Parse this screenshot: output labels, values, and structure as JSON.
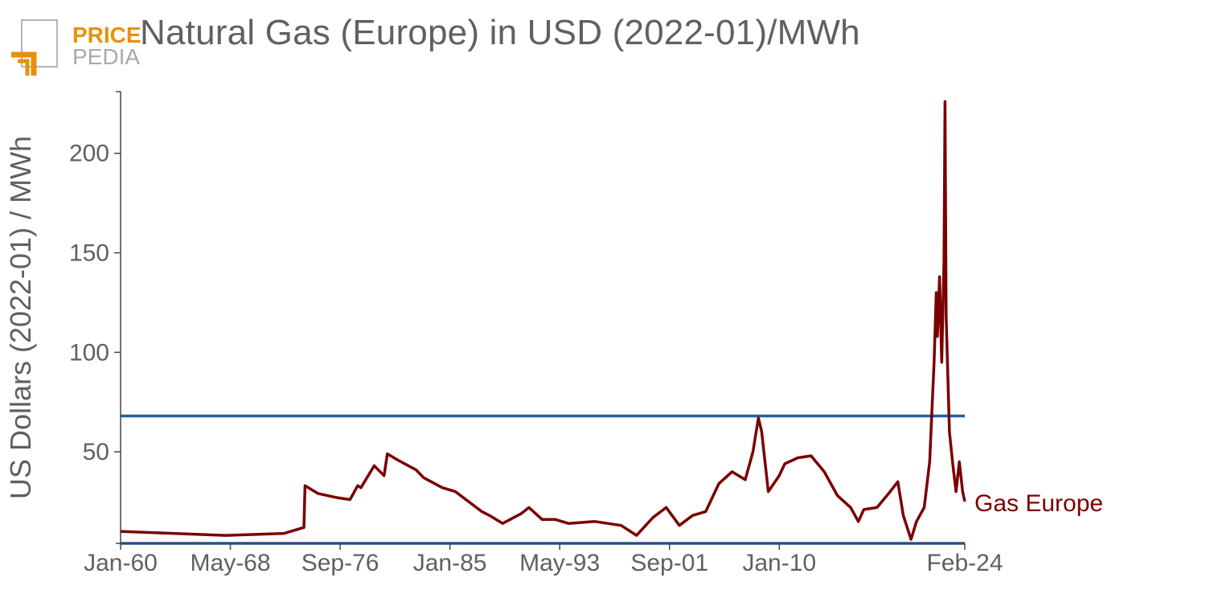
{
  "logo": {
    "line1": "PRICE",
    "line2": "PEDIA"
  },
  "chart_data": {
    "type": "line",
    "title": "Natural Gas (Europe) in USD (2022-01)/MWh",
    "xlabel": "",
    "ylabel": "US Dollars (2022-01) / MWh",
    "x_tick_labels": [
      "Jan-60",
      "May-68",
      "Sep-76",
      "Jan-85",
      "May-93",
      "Sep-01",
      "Jan-10",
      "Feb-24"
    ],
    "x_tick_dates": [
      "1960-01",
      "1968-05",
      "1976-09",
      "1985-01",
      "1993-05",
      "2001-09",
      "2010-01",
      "2024-02"
    ],
    "y_ticks": [
      50,
      100,
      150,
      200
    ],
    "xlim": [
      "1960-01",
      "2024-02"
    ],
    "ylim": [
      4,
      231
    ],
    "grid": false,
    "legend": "none",
    "series_color": "#7a0000",
    "reference_color": "#1f5fa6",
    "reference_lines": [
      68,
      4
    ],
    "series": [
      {
        "name": "Gas Europe",
        "x": [
          "1960-01",
          "1964-01",
          "1968-01",
          "1972-06",
          "1973-12",
          "1974-01",
          "1975-01",
          "1976-06",
          "1977-06",
          "1978-01",
          "1978-04",
          "1979-04",
          "1980-01",
          "1980-04",
          "1981-01",
          "1982-06",
          "1983-01",
          "1984-06",
          "1985-06",
          "1987-06",
          "1988-01",
          "1989-01",
          "1990-06",
          "1991-01",
          "1992-01",
          "1993-01",
          "1994-01",
          "1996-01",
          "1998-01",
          "1999-03",
          "2000-06",
          "2001-06",
          "2002-06",
          "2003-06",
          "2004-06",
          "2005-06",
          "2006-06",
          "2007-06",
          "2008-01",
          "2008-06",
          "2008-09",
          "2009-03",
          "2010-01",
          "2010-06",
          "2011-06",
          "2012-06",
          "2013-06",
          "2014-06",
          "2015-06",
          "2016-01",
          "2016-06",
          "2017-06",
          "2018-06",
          "2019-01",
          "2019-06",
          "2020-01",
          "2020-06",
          "2021-01",
          "2021-06",
          "2021-10",
          "2021-12",
          "2022-01",
          "2022-03",
          "2022-05",
          "2022-07",
          "2022-08",
          "2022-09",
          "2022-12",
          "2023-03",
          "2023-06",
          "2023-09",
          "2023-12",
          "2024-02"
        ],
        "y": [
          10,
          9,
          8,
          9,
          12,
          33,
          29,
          27,
          26,
          33,
          32,
          43,
          38,
          49,
          46,
          41,
          37,
          32,
          30,
          20,
          18,
          14,
          19,
          22,
          16,
          16,
          14,
          15,
          13,
          8,
          17,
          22,
          13,
          18,
          20,
          34,
          40,
          36,
          50,
          67,
          60,
          30,
          38,
          44,
          47,
          48,
          40,
          28,
          22,
          15,
          21,
          22,
          30,
          35,
          18,
          6,
          15,
          22,
          45,
          95,
          130,
          108,
          138,
          95,
          145,
          226,
          118,
          60,
          44,
          30,
          45,
          30,
          25
        ]
      }
    ]
  }
}
